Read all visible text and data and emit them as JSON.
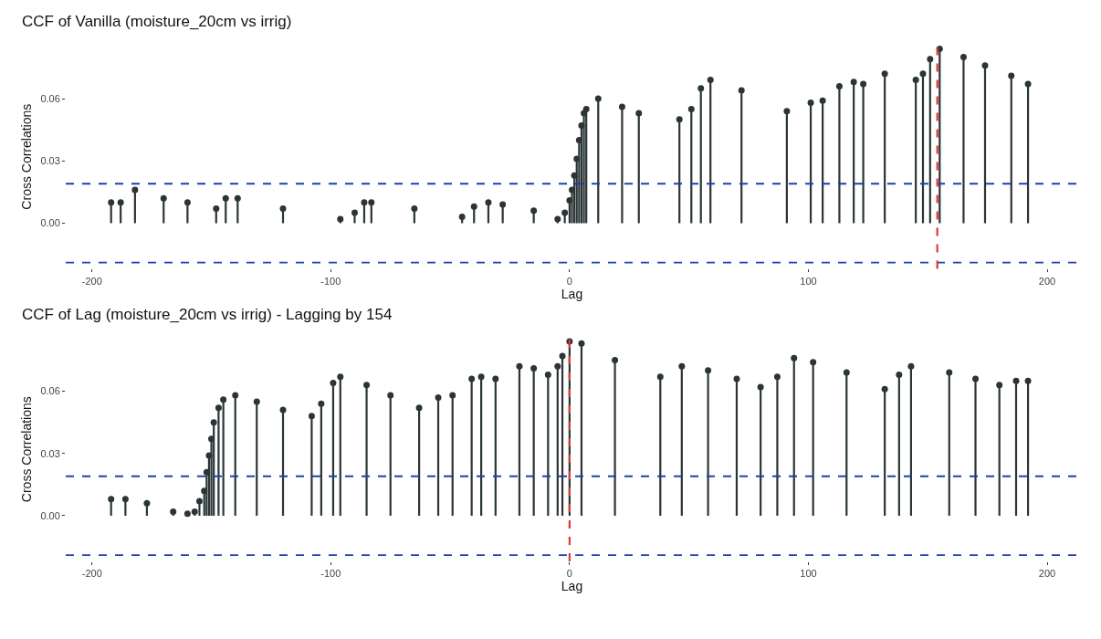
{
  "chart_data": [
    {
      "type": "lollipop",
      "title": "CCF of Vanilla (moisture_20cm vs irrig)",
      "xlabel": "Lag",
      "ylabel": "Cross Correlations",
      "xlim": [
        -211,
        213
      ],
      "ylim": [
        -0.022,
        0.086
      ],
      "xticks": [
        -200,
        -100,
        0,
        100,
        200
      ],
      "yticks": [
        {
          "value": 0,
          "label": "0.00"
        },
        {
          "value": 0.03,
          "label": "0.03"
        },
        {
          "value": 0.06,
          "label": "0.06"
        }
      ],
      "marker": "circle",
      "series": [
        {
          "color": "#2b3535",
          "x": [
            -192,
            -188,
            -182,
            -170,
            -160,
            -148,
            -144,
            -139,
            -120,
            -96,
            -90,
            -86,
            -83,
            -65,
            -45,
            -40,
            -34,
            -28,
            -15,
            -5,
            -2,
            0,
            1,
            2,
            3,
            4,
            5,
            6,
            7,
            12,
            22,
            29,
            46,
            51,
            55,
            59,
            72,
            91,
            101,
            106,
            113,
            119,
            123,
            132,
            145,
            148,
            151,
            155,
            165,
            174,
            185,
            192
          ],
          "values": [
            0.01,
            0.01,
            0.016,
            0.012,
            0.01,
            0.007,
            0.012,
            0.012,
            0.007,
            0.002,
            0.005,
            0.01,
            0.01,
            0.007,
            0.003,
            0.008,
            0.01,
            0.009,
            0.006,
            0.002,
            0.005,
            0.011,
            0.016,
            0.023,
            0.031,
            0.04,
            0.047,
            0.053,
            0.055,
            0.06,
            0.056,
            0.053,
            0.05,
            0.055,
            0.065,
            0.069,
            0.064,
            0.054,
            0.058,
            0.059,
            0.066,
            0.068,
            0.067,
            0.072,
            0.069,
            0.072,
            0.079,
            0.084,
            0.08,
            0.076,
            0.071,
            0.067
          ]
        }
      ],
      "ref_lines": [
        {
          "axis": "y",
          "value": 0.019,
          "color": "#1f3fae",
          "line_style": "dashed"
        },
        {
          "axis": "y",
          "value": -0.019,
          "color": "#1f3fae",
          "line_style": "dashed"
        },
        {
          "axis": "x",
          "value": 154,
          "color": "#d93a3a",
          "line_style": "dashed"
        }
      ]
    },
    {
      "type": "lollipop",
      "title": "CCF of Lag (moisture_20cm vs irrig) - Lagging by 154",
      "xlabel": "Lag",
      "ylabel": "Cross Correlations",
      "xlim": [
        -211,
        213
      ],
      "ylim": [
        -0.022,
        0.086
      ],
      "xticks": [
        -200,
        -100,
        0,
        100,
        200
      ],
      "yticks": [
        {
          "value": 0,
          "label": "0.00"
        },
        {
          "value": 0.03,
          "label": "0.03"
        },
        {
          "value": 0.06,
          "label": "0.06"
        }
      ],
      "marker": "circle",
      "series": [
        {
          "color": "#2b3535",
          "x": [
            -192,
            -186,
            -177,
            -166,
            -160,
            -157,
            -155,
            -153,
            -152,
            -151,
            -150,
            -149,
            -147,
            -145,
            -140,
            -131,
            -120,
            -108,
            -104,
            -99,
            -96,
            -85,
            -75,
            -63,
            -55,
            -49,
            -41,
            -37,
            -31,
            -21,
            -15,
            -9,
            -5,
            -3,
            0,
            5,
            19,
            38,
            47,
            58,
            70,
            80,
            87,
            94,
            102,
            116,
            132,
            138,
            143,
            159,
            170,
            180,
            187,
            192
          ],
          "values": [
            0.008,
            0.008,
            0.006,
            0.002,
            0.001,
            0.002,
            0.007,
            0.012,
            0.021,
            0.029,
            0.037,
            0.045,
            0.052,
            0.056,
            0.058,
            0.055,
            0.051,
            0.048,
            0.054,
            0.064,
            0.067,
            0.063,
            0.058,
            0.052,
            0.057,
            0.058,
            0.066,
            0.067,
            0.066,
            0.072,
            0.071,
            0.068,
            0.072,
            0.077,
            0.084,
            0.083,
            0.075,
            0.067,
            0.072,
            0.07,
            0.066,
            0.062,
            0.067,
            0.076,
            0.074,
            0.069,
            0.061,
            0.068,
            0.072,
            0.069,
            0.066,
            0.063,
            0.065,
            0.065
          ]
        }
      ],
      "ref_lines": [
        {
          "axis": "y",
          "value": 0.019,
          "color": "#1f3fae",
          "line_style": "dashed"
        },
        {
          "axis": "y",
          "value": -0.019,
          "color": "#1f3fae",
          "line_style": "dashed"
        },
        {
          "axis": "x",
          "value": 0,
          "color": "#d93a3a",
          "line_style": "dashed"
        }
      ]
    }
  ]
}
